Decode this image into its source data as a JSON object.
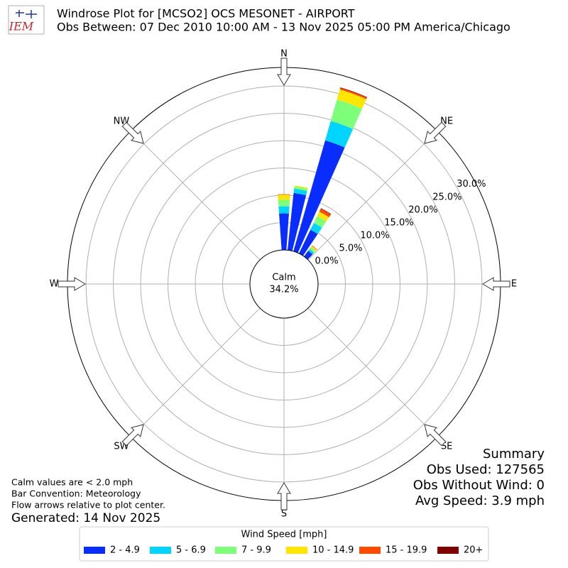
{
  "chart_data": {
    "type": "windrose",
    "logo": "IEM",
    "title": "Windrose Plot for [MCSO2] OCS MESONET - AIRPORT",
    "subtitle": "Obs Between: 07 Dec 2010 10:00 AM - 13 Nov 2025 05:00 PM America/Chicago",
    "directions": [
      0,
      10,
      20,
      30,
      40
    ],
    "series": [
      {
        "name": "2 - 4.9",
        "color": "#0a2dff",
        "values": [
          6.7,
          10.5,
          21.1,
          4.8,
          1.3
        ]
      },
      {
        "name": "5 - 6.9",
        "color": "#00d5ff",
        "values": [
          1.3,
          0.8,
          3.7,
          1.4,
          0.4
        ]
      },
      {
        "name": "7 - 9.9",
        "color": "#7dff7a",
        "values": [
          1.2,
          0.4,
          4.1,
          1.4,
          0.4
        ]
      },
      {
        "name": "10 - 14.9",
        "color": "#ffe600",
        "values": [
          0.9,
          0.2,
          1.9,
          0.9,
          0.3
        ]
      },
      {
        "name": "15 - 19.9",
        "color": "#ff4a00",
        "values": [
          0.1,
          0,
          0.3,
          0.6,
          0.1
        ]
      },
      {
        "name": "20+",
        "color": "#800000",
        "values": [
          0,
          0,
          0.1,
          0.1,
          0
        ]
      }
    ],
    "ylim": [
      0,
      33.4
    ],
    "yticks": [
      {
        "value": 0,
        "label": "0.0%"
      },
      {
        "value": 5,
        "label": "5.0%"
      },
      {
        "value": 10,
        "label": "10.0%"
      },
      {
        "value": 15,
        "label": "15.0%"
      },
      {
        "value": 20,
        "label": "20.0%"
      },
      {
        "value": 25,
        "label": "25.0%"
      },
      {
        "value": 30,
        "label": "30.0%"
      }
    ],
    "grid": true,
    "compass": [
      "N",
      "NE",
      "E",
      "SE",
      "S",
      "SW",
      "W",
      "NW"
    ],
    "calm": {
      "label": "Calm",
      "value": 34.2,
      "value_label": "34.2%"
    },
    "notes": [
      "Calm values are < 2.0 mph",
      "Bar Convention: Meteorology",
      "Flow arrows relative to plot center."
    ],
    "generated": "Generated: 14 Nov 2025",
    "summary": [
      "Summary",
      "Obs Used: 127565",
      "Obs Without Wind: 0",
      "Avg Speed: 3.9 mph"
    ],
    "legend_title": "Wind Speed [mph]"
  }
}
